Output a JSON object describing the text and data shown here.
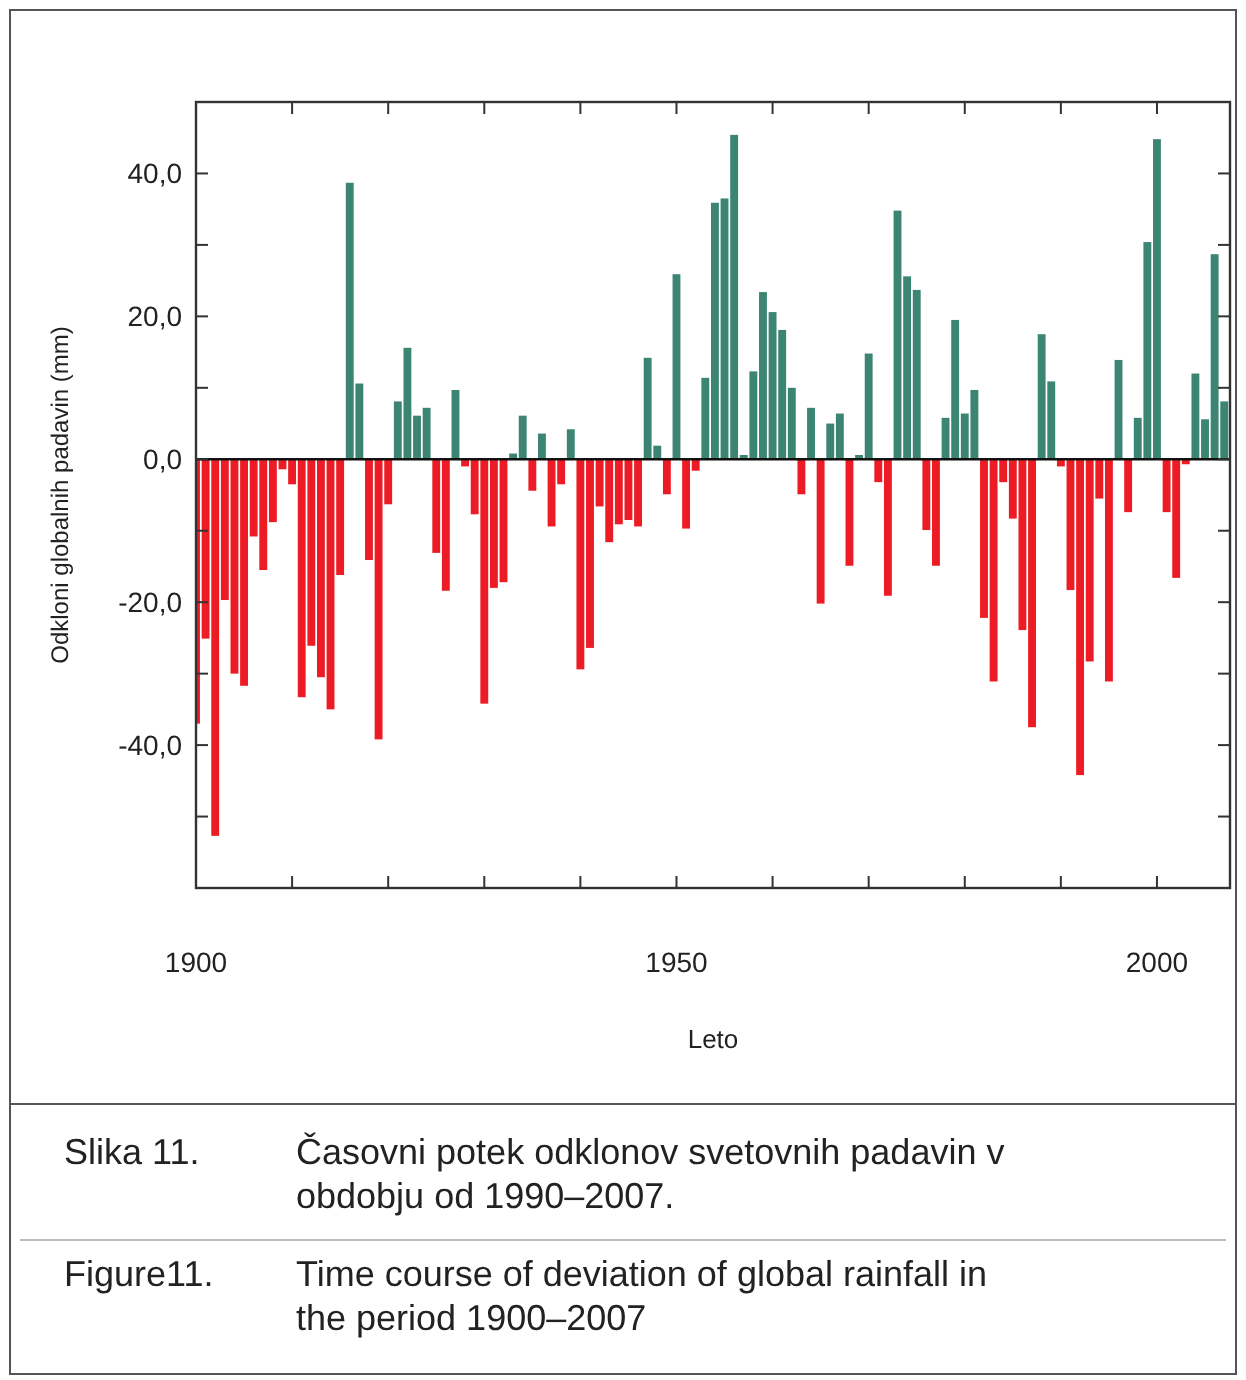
{
  "chart_data": {
    "type": "bar",
    "xlabel": "Leto",
    "ylabel": "Odkloni globalnih padavin (mm)",
    "annotations": [
      "Slika 11.",
      "Časovni potek odklonov svetovnih padavin v obdobju od 1990–2007.",
      "Figure11.",
      "Time course of deviation of global rainfall in the period 1900–2007"
    ],
    "x": [
      1900,
      1901,
      1902,
      1903,
      1904,
      1905,
      1906,
      1907,
      1908,
      1909,
      1910,
      1911,
      1912,
      1913,
      1914,
      1915,
      1916,
      1917,
      1918,
      1919,
      1920,
      1921,
      1922,
      1923,
      1924,
      1925,
      1926,
      1927,
      1928,
      1929,
      1930,
      1931,
      1932,
      1933,
      1934,
      1935,
      1936,
      1937,
      1938,
      1939,
      1940,
      1941,
      1942,
      1943,
      1944,
      1945,
      1946,
      1947,
      1948,
      1949,
      1950,
      1951,
      1952,
      1953,
      1954,
      1955,
      1956,
      1957,
      1958,
      1959,
      1960,
      1961,
      1962,
      1963,
      1964,
      1965,
      1966,
      1967,
      1968,
      1969,
      1970,
      1971,
      1972,
      1973,
      1974,
      1975,
      1976,
      1977,
      1978,
      1979,
      1980,
      1981,
      1982,
      1983,
      1984,
      1985,
      1986,
      1987,
      1988,
      1989,
      1990,
      1991,
      1992,
      1993,
      1994,
      1995,
      1996,
      1997,
      1998,
      1999,
      2000,
      2001,
      2002,
      2003,
      2004,
      2005,
      2006,
      2007
    ],
    "values": [
      -37.0,
      -25.1,
      -52.7,
      -19.7,
      -30.0,
      -31.7,
      -10.8,
      -15.5,
      -8.8,
      -1.4,
      -3.5,
      -33.3,
      -26.1,
      -30.5,
      -35.0,
      -16.2,
      38.7,
      10.6,
      -14.1,
      -39.2,
      -6.3,
      8.1,
      15.6,
      6.1,
      7.2,
      -13.1,
      -18.4,
      9.7,
      -1.0,
      -7.7,
      -34.2,
      -18.0,
      -17.2,
      0.8,
      6.1,
      -4.4,
      3.6,
      -9.4,
      -3.5,
      4.2,
      -29.4,
      -26.4,
      -6.6,
      -11.6,
      -9.1,
      -8.5,
      -9.4,
      14.2,
      1.9,
      -4.9,
      25.9,
      -9.7,
      -1.6,
      11.4,
      35.9,
      36.5,
      45.4,
      0.6,
      12.3,
      23.4,
      20.6,
      18.1,
      10.0,
      -4.9,
      7.2,
      -20.2,
      5.0,
      6.4,
      -14.9,
      0.6,
      14.8,
      -3.2,
      -19.1,
      34.8,
      25.6,
      23.7,
      -9.9,
      -14.9,
      5.8,
      19.5,
      6.4,
      9.7,
      -22.2,
      -31.1,
      -3.2,
      -8.3,
      -23.9,
      -37.5,
      17.5,
      10.9,
      -1.0,
      -18.3,
      -44.2,
      -28.3,
      -5.5,
      -31.1,
      13.9,
      -7.4,
      5.8,
      30.4,
      44.8,
      -7.4,
      -16.6,
      -0.7,
      12.0,
      5.6,
      28.7,
      8.1
    ],
    "colors": [
      "#ed1c24",
      "#ed1c24",
      "#ed1c24",
      "#ed1c24",
      "#ed1c24",
      "#ed1c24",
      "#ed1c24",
      "#ed1c24",
      "#ed1c24",
      "#ed1c24",
      "#ed1c24",
      "#ed1c24",
      "#ed1c24",
      "#ed1c24",
      "#ed1c24",
      "#ed1c24",
      "#3d8573",
      "#3d8573",
      "#ed1c24",
      "#ed1c24",
      "#ed1c24",
      "#3d8573",
      "#3d8573",
      "#3d8573",
      "#3d8573",
      "#ed1c24",
      "#ed1c24",
      "#3d8573",
      "#ed1c24",
      "#ed1c24",
      "#ed1c24",
      "#ed1c24",
      "#ed1c24",
      "#3d8573",
      "#3d8573",
      "#ed1c24",
      "#3d8573",
      "#ed1c24",
      "#ed1c24",
      "#3d8573",
      "#ed1c24",
      "#ed1c24",
      "#ed1c24",
      "#ed1c24",
      "#ed1c24",
      "#ed1c24",
      "#ed1c24",
      "#3d8573",
      "#3d8573",
      "#ed1c24",
      "#3d8573",
      "#ed1c24",
      "#ed1c24",
      "#3d8573",
      "#3d8573",
      "#3d8573",
      "#3d8573",
      "#3d8573",
      "#3d8573",
      "#3d8573",
      "#3d8573",
      "#3d8573",
      "#3d8573",
      "#ed1c24",
      "#3d8573",
      "#ed1c24",
      "#3d8573",
      "#3d8573",
      "#ed1c24",
      "#3d8573",
      "#3d8573",
      "#ed1c24",
      "#ed1c24",
      "#3d8573",
      "#3d8573",
      "#3d8573",
      "#ed1c24",
      "#ed1c24",
      "#3d8573",
      "#3d8573",
      "#3d8573",
      "#3d8573",
      "#ed1c24",
      "#ed1c24",
      "#ed1c24",
      "#ed1c24",
      "#ed1c24",
      "#ed1c24",
      "#3d8573",
      "#3d8573",
      "#ed1c24",
      "#ed1c24",
      "#ed1c24",
      "#ed1c24",
      "#ed1c24",
      "#ed1c24",
      "#3d8573",
      "#ed1c24",
      "#3d8573",
      "#3d8573",
      "#3d8573",
      "#ed1c24",
      "#ed1c24",
      "#ed1c24",
      "#3d8573",
      "#3d8573",
      "#3d8573",
      "#3d8573"
    ],
    "xlim": [
      1900,
      2007.6
    ],
    "xticks": [
      1900,
      {
        "value": 1910,
        "label": null
      },
      {
        "value": 1920,
        "label": null
      },
      {
        "value": 1930,
        "label": null
      },
      {
        "value": 1940,
        "label": null
      },
      1950,
      {
        "value": 1960,
        "label": null
      },
      {
        "value": 1970,
        "label": null
      },
      {
        "value": 1980,
        "label": null
      },
      {
        "value": 1990,
        "label": null
      },
      2000
    ],
    "ylim": [
      -60,
      50
    ],
    "yticks": [
      {
        "value": 40,
        "label": "40,0"
      },
      {
        "value": 30,
        "label": null
      },
      {
        "value": 20,
        "label": "20,0"
      },
      {
        "value": 10,
        "label": null
      },
      {
        "value": 0,
        "label": "0,0"
      },
      {
        "value": -10,
        "label": null
      },
      {
        "value": -20,
        "label": "-20,0"
      },
      {
        "value": -30,
        "label": null
      },
      {
        "value": -40,
        "label": "-40,0"
      },
      {
        "value": -50,
        "label": null
      }
    ],
    "tick_labels": true
  }
}
